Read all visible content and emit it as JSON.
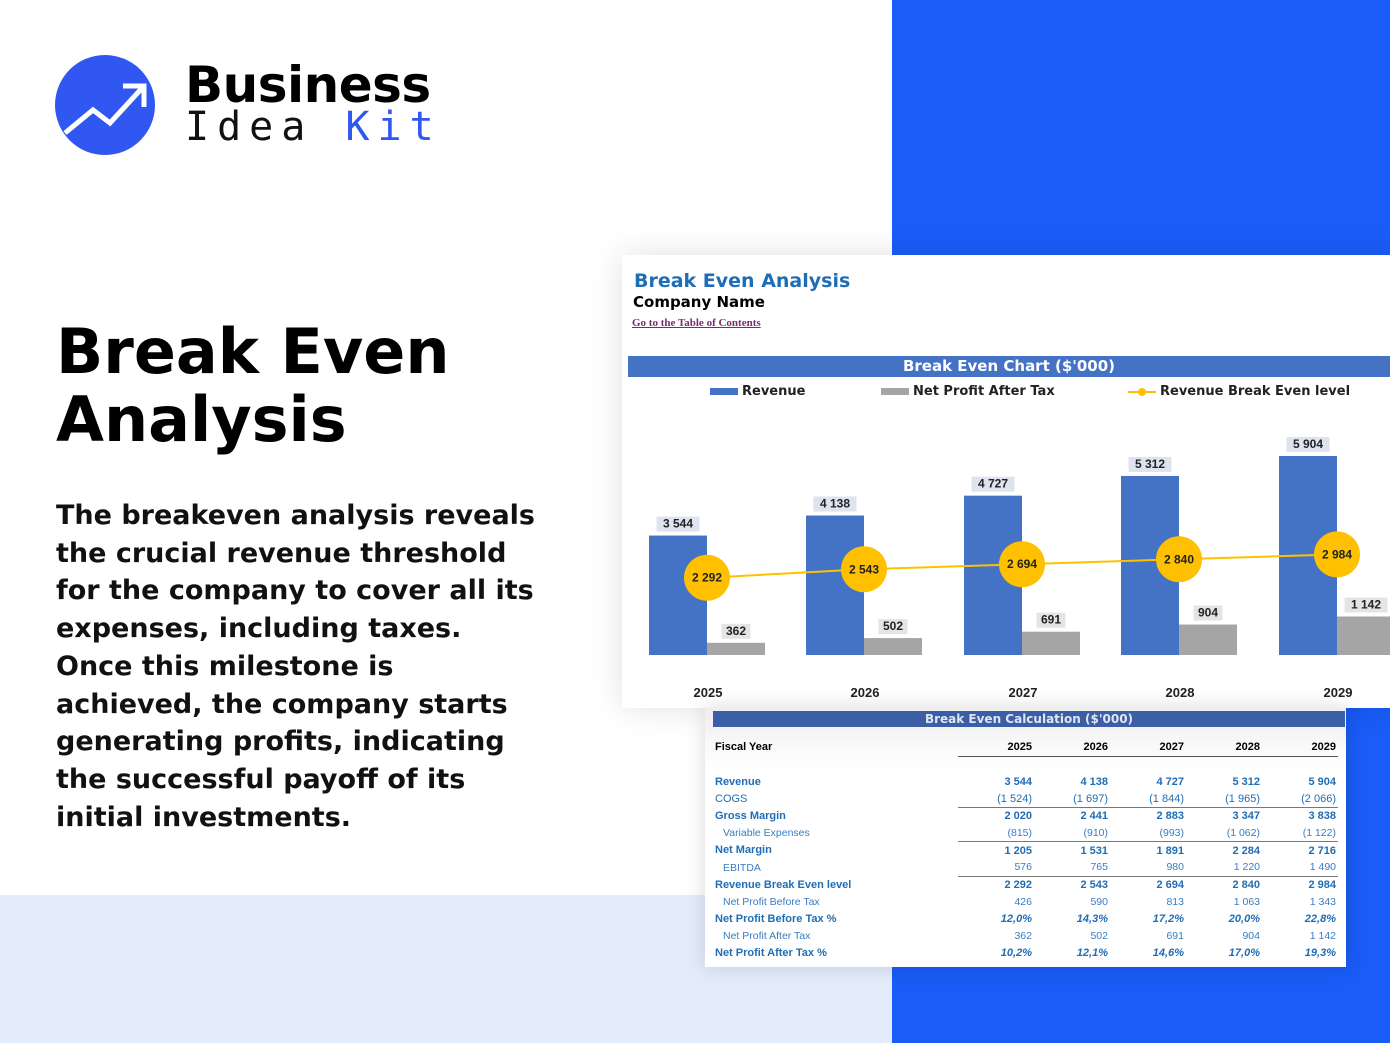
{
  "brand": {
    "line1": "Business",
    "line2a": "Idea",
    "line2b": "Kit",
    "accent": "#3057f2"
  },
  "hero": {
    "title": "Break Even Analysis",
    "description": "The breakeven analysis reveals the crucial revenue threshold for the company to cover all its expenses, including taxes. Once this milestone is achieved, the company starts generating profits, indicating the successful payoff of its initial investments."
  },
  "sheet": {
    "title": "Break Even Analysis",
    "company": "Company Name",
    "toc_link": "Go to the Table of Contents"
  },
  "chart_data": {
    "type": "bar",
    "title": "Break Even Chart ($'000)",
    "categories": [
      "2025",
      "2026",
      "2027",
      "2028",
      "2029"
    ],
    "series": [
      {
        "name": "Revenue",
        "kind": "bar",
        "color": "#4472c4",
        "values": [
          3544,
          4138,
          4727,
          5312,
          5904
        ],
        "labels": [
          "3 544",
          "4 138",
          "4 727",
          "5 312",
          "5 904"
        ]
      },
      {
        "name": "Net Profit After Tax",
        "kind": "bar",
        "color": "#a5a5a5",
        "values": [
          362,
          502,
          691,
          904,
          1142
        ],
        "labels": [
          "362",
          "502",
          "691",
          "904",
          "1 142"
        ]
      },
      {
        "name": "Revenue Break Even level",
        "kind": "line",
        "color": "#ffc000",
        "values": [
          2292,
          2543,
          2694,
          2840,
          2984
        ],
        "labels": [
          "2 292",
          "2 543",
          "2 694",
          "2 840",
          "2 984"
        ]
      }
    ],
    "legend": "top",
    "grid": false
  },
  "table": {
    "title": "Break Even Calculation ($'000)",
    "header": "Fiscal Year",
    "years": [
      "2025",
      "2026",
      "2027",
      "2028",
      "2029"
    ],
    "rows": [
      {
        "label": "Revenue",
        "values": [
          "3 544",
          "4 138",
          "4 727",
          "5 312",
          "5 904"
        ]
      },
      {
        "label": "COGS",
        "values": [
          "(1 524)",
          "(1 697)",
          "(1 844)",
          "(1 965)",
          "(2 066)"
        ]
      },
      {
        "label": "Gross Margin",
        "values": [
          "2 020",
          "2 441",
          "2 883",
          "3 347",
          "3 838"
        ]
      },
      {
        "label": "Variable Expenses",
        "values": [
          "(815)",
          "(910)",
          "(993)",
          "(1 062)",
          "(1 122)"
        ]
      },
      {
        "label": "Net Margin",
        "values": [
          "1 205",
          "1 531",
          "1 891",
          "2 284",
          "2 716"
        ]
      },
      {
        "label": "EBITDA",
        "values": [
          "576",
          "765",
          "980",
          "1 220",
          "1 490"
        ]
      },
      {
        "label": "Revenue Break Even level",
        "values": [
          "2 292",
          "2 543",
          "2 694",
          "2 840",
          "2 984"
        ]
      },
      {
        "label": "Net Profit Before Tax",
        "values": [
          "426",
          "590",
          "813",
          "1 063",
          "1 343"
        ]
      },
      {
        "label": "Net Profit Before Tax %",
        "values": [
          "12,0%",
          "14,3%",
          "17,2%",
          "20,0%",
          "22,8%"
        ]
      },
      {
        "label": "Net Profit After Tax",
        "values": [
          "362",
          "502",
          "691",
          "904",
          "1 142"
        ]
      },
      {
        "label": "Net Profit After Tax %",
        "values": [
          "10,2%",
          "12,1%",
          "14,6%",
          "17,0%",
          "19,3%"
        ]
      }
    ]
  }
}
